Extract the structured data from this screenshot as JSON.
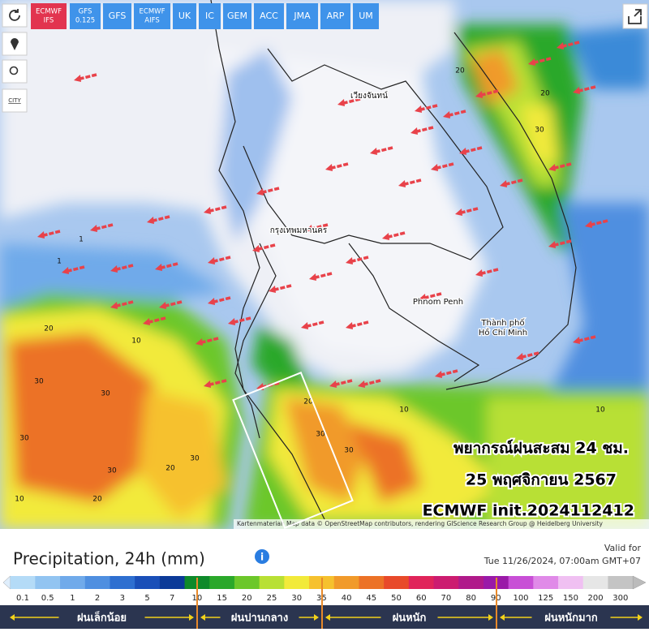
{
  "toolbar": {
    "models": [
      [
        "ECMWF",
        "IFS"
      ],
      [
        "GFS",
        "0.125"
      ],
      [
        "GFS"
      ],
      [
        "ECMWF",
        "AIFS"
      ],
      [
        "UK"
      ],
      [
        "IC"
      ],
      [
        "GEM"
      ],
      [
        "ACC"
      ],
      [
        "JMA"
      ],
      [
        "ARP"
      ],
      [
        "UM"
      ]
    ],
    "city_label": "CITY"
  },
  "map": {
    "places": [
      "เวียงจันทน์",
      "กรุงเทพมหานคร",
      "Phnom Penh",
      "Thành phố",
      "Hồ Chí Minh"
    ],
    "contour_labels": [
      "20",
      "20",
      "30",
      "20",
      "30",
      "30",
      "30",
      "30",
      "20",
      "30",
      "30",
      "30",
      "20",
      "10",
      "10",
      "1",
      "1",
      "10",
      "20",
      "10"
    ],
    "overlay": [
      "พยากรณ์ฝนสะสม 24 ชม.",
      "25 พฤศจิกายน 2567",
      "ECMWF init.2024112412"
    ],
    "attribution": "Kartenmaterial: Map data © OpenStreetMap contributors, rendering GIScience Research Group @ Heidelberg University"
  },
  "legend": {
    "title": "Precipitation, 24h (mm)",
    "valid_label": "Valid for",
    "valid_time": "Tue 11/26/2024, 07:00am GMT+07",
    "scale": [
      {
        "value": 0.1,
        "color": "#b4dbf7"
      },
      {
        "value": 0.5,
        "color": "#92c4f1"
      },
      {
        "value": 1,
        "color": "#70aaea"
      },
      {
        "value": 2,
        "color": "#4f8fe0"
      },
      {
        "value": 3,
        "color": "#2e6fd0"
      },
      {
        "value": 5,
        "color": "#1a4fb8"
      },
      {
        "value": 7,
        "color": "#0b3a98"
      },
      {
        "value": 10,
        "color": "#0e8a2a"
      },
      {
        "value": 15,
        "color": "#2aa82a"
      },
      {
        "value": 20,
        "color": "#6cc72a"
      },
      {
        "value": 25,
        "color": "#b8e034"
      },
      {
        "value": 30,
        "color": "#f2ea3a"
      },
      {
        "value": 35,
        "color": "#f6c12e"
      },
      {
        "value": 40,
        "color": "#f19a2a"
      },
      {
        "value": 45,
        "color": "#ec7226"
      },
      {
        "value": 50,
        "color": "#e84a2a"
      },
      {
        "value": 60,
        "color": "#e0245a"
      },
      {
        "value": 70,
        "color": "#cc1c70"
      },
      {
        "value": 80,
        "color": "#b01a8a"
      },
      {
        "value": 90,
        "color": "#9a1aa8"
      },
      {
        "value": 100,
        "color": "#c84fd6"
      },
      {
        "value": 125,
        "color": "#e08ae8"
      },
      {
        "value": 150,
        "color": "#f0c0f2"
      },
      {
        "value": 200,
        "color": "#e6e6e6"
      },
      {
        "value": 300,
        "color": "#c4c4c4"
      }
    ],
    "categories": [
      "ฝนเล็กน้อย",
      "ฝนปานกลาง",
      "ฝนหนัก",
      "ฝนหนักมาก"
    ]
  }
}
